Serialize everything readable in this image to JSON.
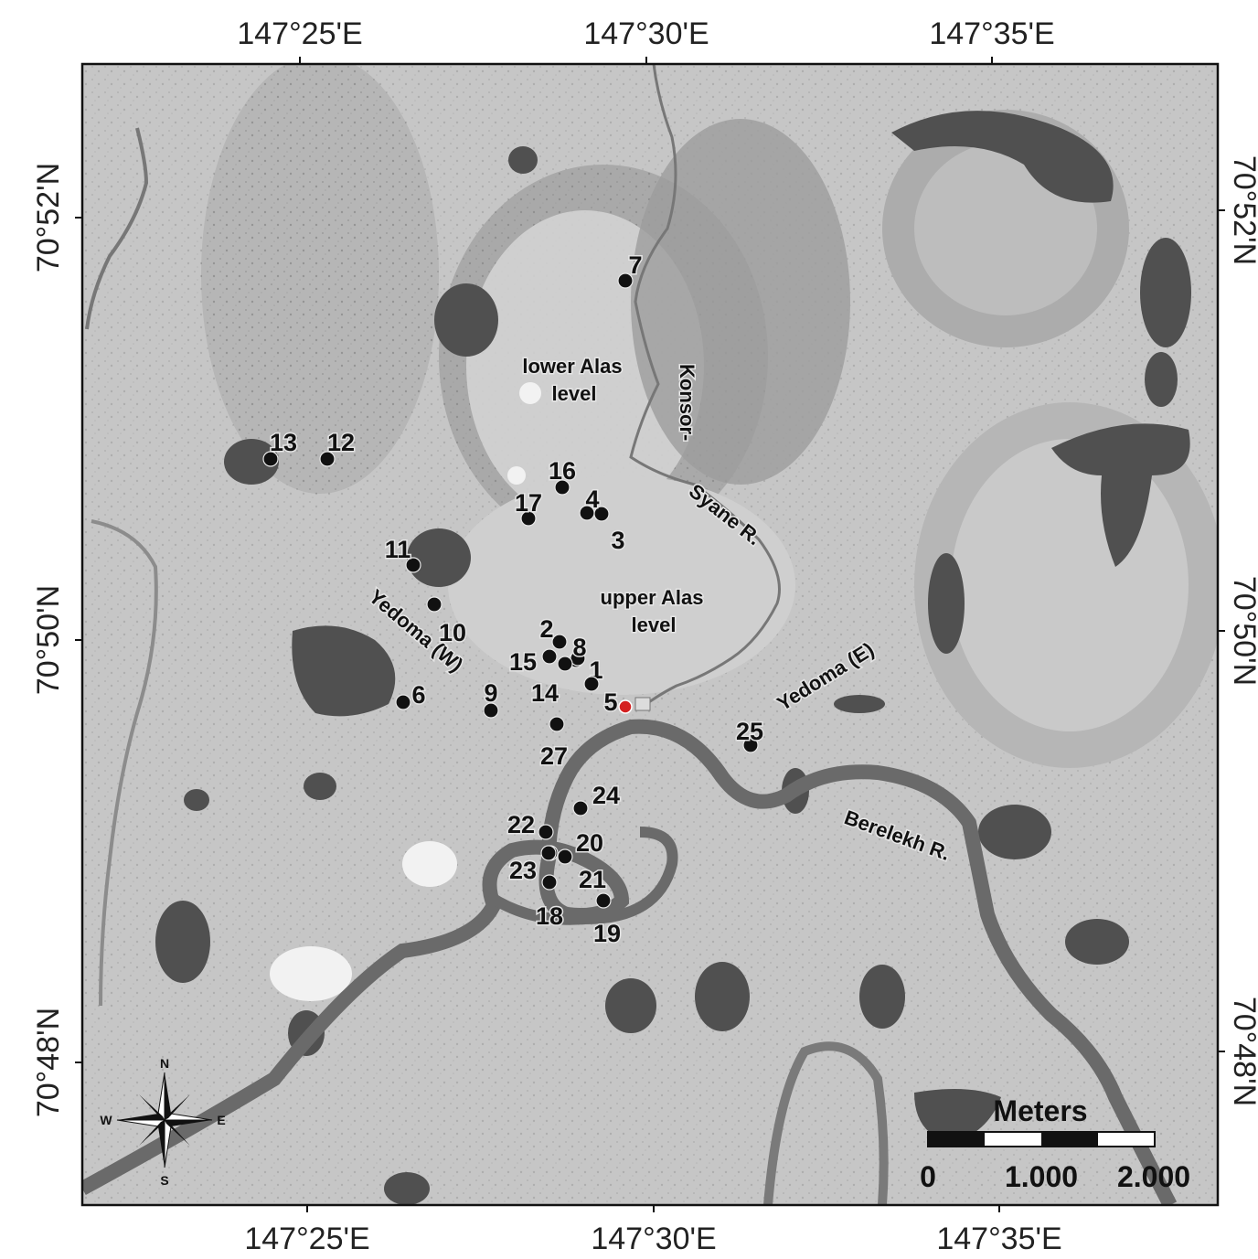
{
  "coordinates": {
    "top": [
      "147°25'E",
      "147°30'E",
      "147°35'E"
    ],
    "bottom": [
      "147°25'E",
      "147°30'E",
      "147°35'E"
    ],
    "left": [
      "70°52'N",
      "70°50'N",
      "70°48'N"
    ],
    "right": [
      "70°52'N",
      "70°50'N",
      "70°48'N"
    ]
  },
  "features": {
    "lower_alas_1": "lower Alas",
    "lower_alas_2": "level",
    "upper_alas_1": "upper Alas",
    "upper_alas_2": "level",
    "konsor": "Konsor-",
    "syane": "Syane R.",
    "yedoma_w": "Yedoma (W)",
    "yedoma_e": "Yedoma (E)",
    "berelekh": "Berelekh R."
  },
  "sites": [
    "1",
    "2",
    "3",
    "4",
    "5",
    "6",
    "7",
    "8",
    "9",
    "10",
    "11",
    "12",
    "13",
    "14",
    "15",
    "16",
    "17",
    "18",
    "19",
    "20",
    "21",
    "22",
    "23",
    "24",
    "25",
    "27"
  ],
  "highlight_site_color": "#d42020",
  "scalebar": {
    "title": "Meters",
    "ticks": [
      "0",
      "1.000",
      "2.000"
    ]
  },
  "compass": {
    "n": "N",
    "s": "S",
    "e": "E",
    "w": "W"
  }
}
